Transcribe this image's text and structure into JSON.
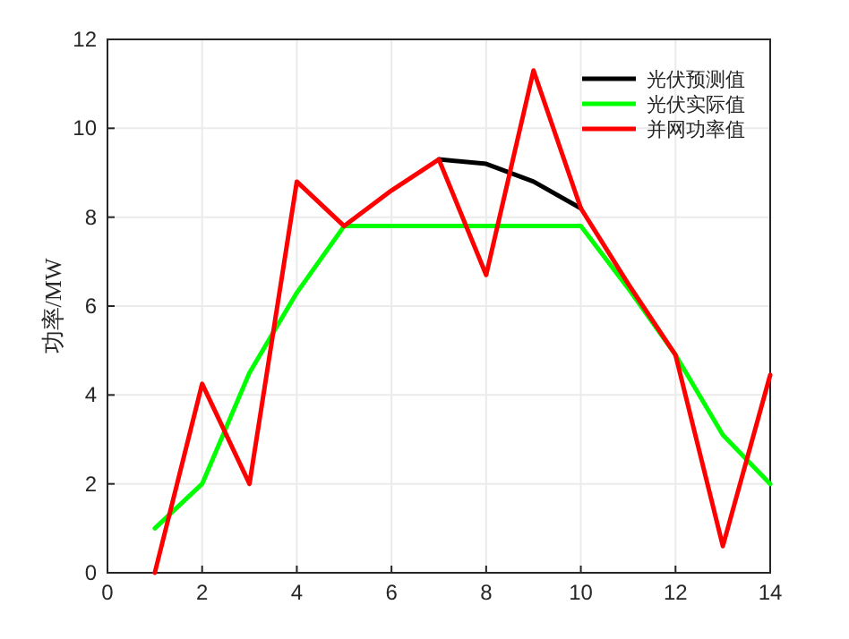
{
  "chart_data": {
    "type": "line",
    "ylabel": "功率/MW",
    "x": [
      1,
      2,
      3,
      4,
      5,
      6,
      7,
      8,
      9,
      10,
      11,
      12,
      13,
      14
    ],
    "series": [
      {
        "name": "光伏预测值",
        "color": "#000000",
        "values": [
          null,
          null,
          null,
          null,
          null,
          null,
          9.3,
          9.2,
          8.8,
          8.2,
          null,
          null,
          null,
          null
        ]
      },
      {
        "name": "光伏实际值",
        "color": "#00ff00",
        "values": [
          1.0,
          2.0,
          4.5,
          6.3,
          7.8,
          7.8,
          7.8,
          7.8,
          7.8,
          7.8,
          6.4,
          4.9,
          3.1,
          2.0
        ]
      },
      {
        "name": "并网功率值",
        "color": "#ff0000",
        "values": [
          0.0,
          4.25,
          2.0,
          8.8,
          7.8,
          8.6,
          9.3,
          6.7,
          11.3,
          8.2,
          6.5,
          4.9,
          0.6,
          4.45
        ]
      }
    ],
    "xlim": [
      0,
      14
    ],
    "xticks": [
      0,
      2,
      4,
      6,
      8,
      10,
      12,
      14
    ],
    "ylim": [
      0,
      12
    ],
    "yticks": [
      0,
      2,
      4,
      6,
      8,
      10,
      12
    ],
    "grid": true,
    "legend": "top right"
  }
}
